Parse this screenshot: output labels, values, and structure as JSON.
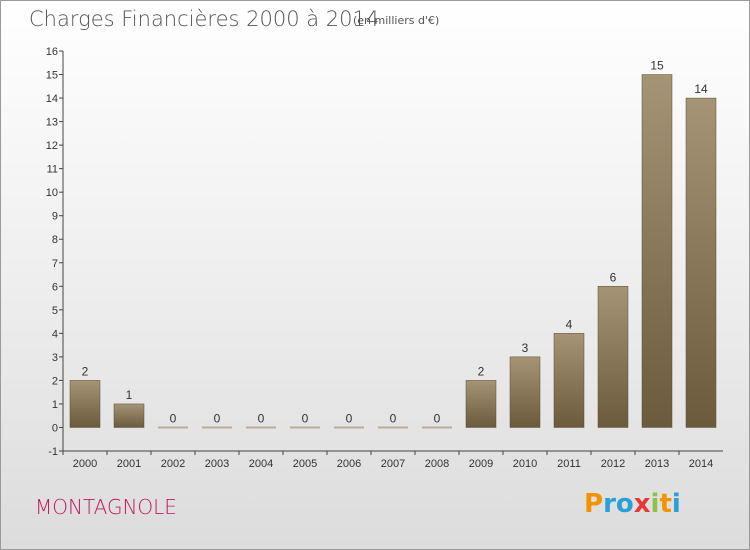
{
  "title": "Charges Financières 2000 à 2014",
  "subtitle": "(en milliers d'€)",
  "commune": "MONTAGNOLE",
  "logo": {
    "letters": [
      "P",
      "r",
      "o",
      "x",
      "i",
      "t",
      "i"
    ],
    "colors": [
      "#f29400",
      "#2a9fd8",
      "#2a9fd8",
      "#e53935",
      "#8bc34a",
      "#f29400",
      "#2a9fd8"
    ]
  },
  "colors": {
    "bar_top": "#a59475",
    "bar_bottom": "#6b5a3c",
    "zero_bar": "#b8ad9a",
    "axis": "#444444"
  },
  "chart_data": {
    "type": "bar",
    "categories": [
      "2000",
      "2001",
      "2002",
      "2003",
      "2004",
      "2005",
      "2006",
      "2007",
      "2008",
      "2009",
      "2010",
      "2011",
      "2012",
      "2013",
      "2014"
    ],
    "values": [
      2,
      1,
      0,
      0,
      0,
      0,
      0,
      0,
      0,
      2,
      3,
      4,
      6,
      15,
      14
    ],
    "data_labels": [
      "2",
      "1",
      "0",
      "0",
      "0",
      "0",
      "0",
      "0",
      "0",
      "2",
      "3",
      "4",
      "6",
      "15",
      "14"
    ],
    "ylim": [
      -1,
      16
    ],
    "yticks": [
      -1,
      0,
      1,
      2,
      3,
      4,
      5,
      6,
      7,
      8,
      9,
      10,
      11,
      12,
      13,
      14,
      15,
      16
    ],
    "ytick_labels": [
      "-1",
      "0",
      "1",
      "2",
      "3",
      "4",
      "5",
      "6",
      "7",
      "8",
      "9",
      "10",
      "11",
      "12",
      "13",
      "14",
      "15",
      "16"
    ],
    "grid": false,
    "title": "Charges Financières 2000 à 2014",
    "xlabel": "",
    "ylabel": ""
  }
}
